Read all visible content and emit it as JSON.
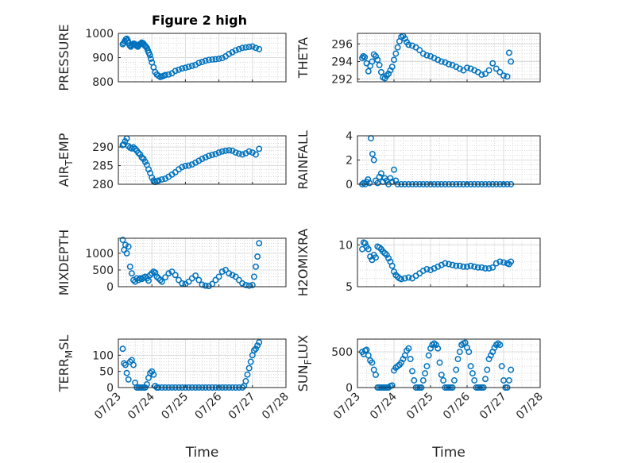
{
  "figure": {
    "title": "Figure 2 high"
  },
  "colors": {
    "marker": "#0072BD",
    "grid_major": "#dcdcdc",
    "grid_minor": "#c8c8c8",
    "axis": "#262626"
  },
  "chart_data": [
    {
      "type": "scatter",
      "ylabel": "PRESSURE",
      "title": "Figure 2 high",
      "xlabel": "",
      "xlim": [
        0,
        5
      ],
      "ylim": [
        800,
        1000
      ],
      "yticks": [
        800,
        900,
        1000
      ],
      "ytick_labels": [
        "800",
        "900",
        "1000"
      ],
      "xtick_labels": [],
      "grid": true,
      "x": [
        0.13,
        0.16,
        0.19,
        0.22,
        0.25,
        0.28,
        0.31,
        0.34,
        0.37,
        0.4,
        0.43,
        0.46,
        0.49,
        0.52,
        0.55,
        0.58,
        0.61,
        0.64,
        0.67,
        0.7,
        0.73,
        0.76,
        0.79,
        0.82,
        0.85,
        0.88,
        0.91,
        0.94,
        0.97,
        1.0,
        1.05,
        1.1,
        1.15,
        1.2,
        1.25,
        1.3,
        1.35,
        1.4,
        1.5,
        1.6,
        1.7,
        1.8,
        1.9,
        2.0,
        2.1,
        2.2,
        2.3,
        2.4,
        2.5,
        2.6,
        2.7,
        2.8,
        2.9,
        3.0,
        3.1,
        3.2,
        3.3,
        3.4,
        3.5,
        3.6,
        3.7,
        3.8,
        3.9,
        4.0,
        4.1,
        4.2
      ],
      "y": [
        955,
        960,
        968,
        975,
        978,
        970,
        960,
        950,
        945,
        950,
        955,
        958,
        956,
        952,
        948,
        945,
        950,
        955,
        958,
        962,
        960,
        955,
        950,
        945,
        940,
        930,
        920,
        910,
        895,
        880,
        860,
        840,
        830,
        825,
        820,
        822,
        825,
        828,
        830,
        835,
        845,
        850,
        855,
        858,
        862,
        866,
        870,
        878,
        882,
        887,
        890,
        892,
        893,
        895,
        898,
        905,
        915,
        922,
        930,
        935,
        940,
        942,
        944,
        946,
        940,
        935
      ]
    },
    {
      "type": "scatter",
      "ylabel": "THETA",
      "xlim": [
        0,
        5
      ],
      "ylim": [
        291.7,
        297.2
      ],
      "yticks": [
        292,
        294,
        296
      ],
      "ytick_labels": [
        "292",
        "294",
        "296"
      ],
      "xtick_labels": [],
      "grid": true,
      "x": [
        0.13,
        0.16,
        0.2,
        0.25,
        0.3,
        0.35,
        0.4,
        0.45,
        0.5,
        0.55,
        0.6,
        0.65,
        0.7,
        0.75,
        0.8,
        0.85,
        0.9,
        0.95,
        1.0,
        1.05,
        1.1,
        1.15,
        1.2,
        1.25,
        1.3,
        1.35,
        1.4,
        1.5,
        1.6,
        1.7,
        1.8,
        1.9,
        2.0,
        2.1,
        2.2,
        2.3,
        2.4,
        2.5,
        2.6,
        2.7,
        2.8,
        2.9,
        3.0,
        3.1,
        3.2,
        3.3,
        3.4,
        3.5,
        3.6,
        3.7,
        3.8,
        3.9,
        4.0,
        4.1,
        4.15,
        4.2
      ],
      "y": [
        294.4,
        294.6,
        294.5,
        293.8,
        292.9,
        293.5,
        294.0,
        294.8,
        294.6,
        294.2,
        293.6,
        292.8,
        292.2,
        292.1,
        292.4,
        292.6,
        293.0,
        293.4,
        294.2,
        294.9,
        295.6,
        296.3,
        296.8,
        296.9,
        296.6,
        296.2,
        295.9,
        295.8,
        295.6,
        295.3,
        294.9,
        294.7,
        294.6,
        294.4,
        294.2,
        294.0,
        293.9,
        293.7,
        293.6,
        293.4,
        293.2,
        293.0,
        293.3,
        293.2,
        293.0,
        292.8,
        292.5,
        292.6,
        293.0,
        293.8,
        293.2,
        292.8,
        292.4,
        292.3,
        295.0,
        294.0
      ]
    },
    {
      "type": "scatter",
      "ylabel": "AIR_TEMP",
      "xlim": [
        0,
        5
      ],
      "ylim": [
        280,
        293
      ],
      "yticks": [
        280,
        285,
        290
      ],
      "ytick_labels": [
        "280",
        "285",
        "290"
      ],
      "xtick_labels": [],
      "grid": true,
      "x": [
        0.13,
        0.16,
        0.2,
        0.25,
        0.3,
        0.35,
        0.4,
        0.45,
        0.5,
        0.55,
        0.6,
        0.65,
        0.7,
        0.75,
        0.8,
        0.85,
        0.9,
        0.95,
        1.0,
        1.05,
        1.1,
        1.15,
        1.2,
        1.3,
        1.4,
        1.5,
        1.6,
        1.7,
        1.8,
        1.9,
        2.0,
        2.1,
        2.2,
        2.3,
        2.4,
        2.5,
        2.6,
        2.7,
        2.8,
        2.9,
        3.0,
        3.1,
        3.2,
        3.3,
        3.4,
        3.5,
        3.6,
        3.7,
        3.8,
        3.9,
        4.0,
        4.1,
        4.2
      ],
      "y": [
        290.5,
        290.7,
        291.5,
        292.3,
        290.2,
        289.8,
        289.6,
        289.9,
        289.5,
        289.0,
        288.4,
        288.0,
        287.2,
        286.8,
        286.0,
        285.2,
        284.0,
        283.0,
        281.8,
        281.0,
        280.6,
        280.8,
        281.0,
        281.3,
        281.5,
        282.0,
        282.6,
        283.2,
        284.0,
        284.6,
        284.9,
        285.0,
        285.3,
        285.8,
        286.3,
        286.8,
        287.2,
        287.6,
        287.9,
        288.1,
        288.5,
        288.8,
        289.0,
        289.1,
        289.0,
        288.5,
        288.2,
        288.0,
        288.3,
        288.8,
        288.5,
        288.0,
        289.5
      ]
    },
    {
      "type": "scatter",
      "ylabel": "RAINFALL",
      "xlim": [
        0,
        5
      ],
      "ylim": [
        0,
        4
      ],
      "yticks": [
        0,
        2,
        4
      ],
      "ytick_labels": [
        "0",
        "2",
        "4"
      ],
      "xtick_labels": [],
      "grid": true,
      "x": [
        0.13,
        0.17,
        0.21,
        0.25,
        0.29,
        0.33,
        0.37,
        0.41,
        0.45,
        0.5,
        0.55,
        0.6,
        0.65,
        0.7,
        0.75,
        0.8,
        0.85,
        0.9,
        0.95,
        1.0,
        1.05,
        1.1,
        1.2,
        1.3,
        1.4,
        1.5,
        1.6,
        1.7,
        1.8,
        1.9,
        2.0,
        2.1,
        2.2,
        2.3,
        2.4,
        2.5,
        2.6,
        2.7,
        2.8,
        2.9,
        3.0,
        3.1,
        3.2,
        3.3,
        3.4,
        3.5,
        3.6,
        3.7,
        3.8,
        3.9,
        4.0,
        4.1,
        4.2
      ],
      "y": [
        0.0,
        0.1,
        0.0,
        0.2,
        0.4,
        0.1,
        3.8,
        2.5,
        2.0,
        0.3,
        0.1,
        0.6,
        0.9,
        0.2,
        0.5,
        0.3,
        0.0,
        0.5,
        0.2,
        1.2,
        0.3,
        0.0,
        0,
        0,
        0,
        0,
        0,
        0,
        0,
        0,
        0,
        0,
        0,
        0,
        0,
        0,
        0,
        0,
        0,
        0,
        0,
        0,
        0,
        0,
        0,
        0,
        0,
        0,
        0,
        0,
        0,
        0,
        0
      ]
    },
    {
      "type": "scatter",
      "ylabel": "MIXDEPTH",
      "xlim": [
        0,
        5
      ],
      "ylim": [
        0,
        1450
      ],
      "yticks": [
        0,
        500,
        1000
      ],
      "ytick_labels": [
        "0",
        "500",
        "1000"
      ],
      "xtick_labels": [],
      "grid": true,
      "x": [
        0.13,
        0.17,
        0.21,
        0.25,
        0.3,
        0.35,
        0.4,
        0.45,
        0.5,
        0.55,
        0.6,
        0.65,
        0.7,
        0.75,
        0.8,
        0.85,
        0.9,
        0.95,
        1.0,
        1.05,
        1.1,
        1.15,
        1.2,
        1.25,
        1.3,
        1.4,
        1.5,
        1.6,
        1.7,
        1.8,
        1.9,
        2.0,
        2.1,
        2.2,
        2.3,
        2.4,
        2.5,
        2.6,
        2.7,
        2.8,
        2.9,
        3.0,
        3.1,
        3.2,
        3.3,
        3.4,
        3.5,
        3.6,
        3.7,
        3.8,
        3.9,
        4.0,
        4.05,
        4.1,
        4.15,
        4.2
      ],
      "y": [
        1400,
        1100,
        1250,
        1000,
        1200,
        600,
        400,
        200,
        150,
        250,
        200,
        250,
        230,
        270,
        300,
        250,
        180,
        350,
        400,
        450,
        420,
        300,
        250,
        200,
        150,
        280,
        400,
        450,
        350,
        200,
        100,
        80,
        150,
        250,
        330,
        200,
        60,
        30,
        20,
        80,
        200,
        300,
        450,
        500,
        400,
        350,
        300,
        200,
        100,
        50,
        30,
        50,
        300,
        600,
        900,
        1300
      ]
    },
    {
      "type": "scatter",
      "ylabel": "H2OMIXRA",
      "xlim": [
        0,
        5
      ],
      "ylim": [
        5,
        10.8
      ],
      "yticks": [
        5,
        10
      ],
      "ytick_labels": [
        "5",
        "10"
      ],
      "xtick_labels": [],
      "grid": true,
      "x": [
        0.13,
        0.17,
        0.21,
        0.25,
        0.3,
        0.35,
        0.4,
        0.45,
        0.5,
        0.55,
        0.6,
        0.65,
        0.7,
        0.75,
        0.8,
        0.85,
        0.9,
        0.95,
        1.0,
        1.05,
        1.1,
        1.15,
        1.2,
        1.3,
        1.4,
        1.5,
        1.6,
        1.7,
        1.8,
        1.9,
        2.0,
        2.1,
        2.2,
        2.3,
        2.4,
        2.5,
        2.6,
        2.7,
        2.8,
        2.9,
        3.0,
        3.1,
        3.2,
        3.3,
        3.4,
        3.5,
        3.6,
        3.7,
        3.8,
        3.9,
        4.0,
        4.1,
        4.15,
        4.2
      ],
      "y": [
        9.5,
        10.3,
        10.2,
        9.8,
        9.5,
        8.6,
        8.2,
        8.8,
        8.5,
        9.8,
        9.7,
        9.5,
        9.2,
        9.0,
        8.8,
        8.4,
        8.0,
        7.5,
        6.8,
        6.4,
        6.2,
        6.0,
        5.9,
        6.0,
        6.1,
        6.0,
        6.3,
        6.6,
        6.9,
        7.1,
        7.0,
        7.2,
        7.4,
        7.6,
        7.8,
        7.7,
        7.6,
        7.5,
        7.5,
        7.4,
        7.4,
        7.5,
        7.4,
        7.3,
        7.3,
        7.2,
        7.2,
        7.3,
        7.8,
        8.0,
        7.9,
        7.8,
        7.7,
        8.0
      ]
    },
    {
      "type": "scatter",
      "ylabel": "TERR_MSL",
      "xlim": [
        0,
        5
      ],
      "ylim": [
        0,
        150
      ],
      "yticks": [
        0,
        50,
        100
      ],
      "ytick_labels": [
        "0",
        "50",
        "100"
      ],
      "xtick_labels": [
        "07/23",
        "07/24",
        "07/25",
        "07/26",
        "07/27",
        "07/28"
      ],
      "xlabel": "Time",
      "grid": true,
      "x": [
        0.13,
        0.17,
        0.21,
        0.25,
        0.3,
        0.35,
        0.4,
        0.45,
        0.5,
        0.55,
        0.6,
        0.65,
        0.7,
        0.75,
        0.8,
        0.85,
        0.9,
        0.95,
        1.0,
        1.05,
        1.1,
        1.15,
        1.2,
        1.3,
        1.4,
        1.5,
        1.6,
        1.7,
        1.8,
        1.9,
        2.0,
        2.1,
        2.2,
        2.3,
        2.4,
        2.5,
        2.6,
        2.7,
        2.8,
        2.9,
        3.0,
        3.1,
        3.2,
        3.3,
        3.4,
        3.5,
        3.6,
        3.7,
        3.75,
        3.8,
        3.85,
        3.9,
        3.95,
        4.0,
        4.05,
        4.1,
        4.15,
        4.2
      ],
      "y": [
        120,
        75,
        70,
        45,
        25,
        80,
        85,
        70,
        15,
        0,
        0,
        0,
        0,
        0,
        0,
        10,
        30,
        45,
        50,
        40,
        5,
        0,
        0,
        0,
        0,
        0,
        0,
        0,
        0,
        0,
        0,
        0,
        0,
        0,
        0,
        0,
        0,
        0,
        0,
        0,
        0,
        0,
        0,
        0,
        0,
        0,
        0,
        0,
        5,
        20,
        40,
        60,
        80,
        100,
        115,
        120,
        130,
        140
      ]
    },
    {
      "type": "scatter",
      "ylabel": "SUN_FLUX",
      "xlim": [
        0,
        5
      ],
      "ylim": [
        0,
        680
      ],
      "yticks": [
        0,
        500
      ],
      "ytick_labels": [
        "0",
        "500"
      ],
      "xtick_labels": [
        "07/23",
        "07/24",
        "07/25",
        "07/26",
        "07/27",
        "07/28"
      ],
      "xlabel": "Time",
      "grid": true,
      "x": [
        0.13,
        0.17,
        0.21,
        0.25,
        0.3,
        0.35,
        0.4,
        0.45,
        0.5,
        0.55,
        0.6,
        0.65,
        0.7,
        0.75,
        0.8,
        0.85,
        0.9,
        0.95,
        1.0,
        1.05,
        1.1,
        1.15,
        1.2,
        1.25,
        1.3,
        1.35,
        1.4,
        1.45,
        1.5,
        1.55,
        1.6,
        1.65,
        1.7,
        1.75,
        1.8,
        1.85,
        1.9,
        1.95,
        2.0,
        2.05,
        2.1,
        2.15,
        2.2,
        2.25,
        2.3,
        2.35,
        2.4,
        2.45,
        2.5,
        2.55,
        2.6,
        2.65,
        2.7,
        2.75,
        2.8,
        2.85,
        2.9,
        2.95,
        3.0,
        3.05,
        3.1,
        3.15,
        3.2,
        3.25,
        3.3,
        3.35,
        3.4,
        3.45,
        3.5,
        3.55,
        3.6,
        3.65,
        3.7,
        3.75,
        3.8,
        3.85,
        3.9,
        3.95,
        4.0,
        4.05,
        4.1,
        4.15,
        4.2
      ],
      "y": [
        500,
        470,
        520,
        530,
        450,
        380,
        350,
        250,
        180,
        0,
        0,
        0,
        0,
        0,
        0,
        0,
        20,
        30,
        240,
        280,
        300,
        320,
        350,
        400,
        450,
        520,
        550,
        400,
        230,
        100,
        0,
        0,
        0,
        0,
        100,
        200,
        300,
        450,
        550,
        600,
        620,
        600,
        550,
        350,
        180,
        100,
        0,
        0,
        0,
        0,
        0,
        100,
        250,
        400,
        500,
        600,
        620,
        630,
        560,
        500,
        300,
        200,
        100,
        0,
        0,
        0,
        0,
        0,
        120,
        250,
        400,
        450,
        500,
        560,
        600,
        620,
        600,
        300,
        100,
        0,
        0,
        100,
        250
      ]
    }
  ]
}
